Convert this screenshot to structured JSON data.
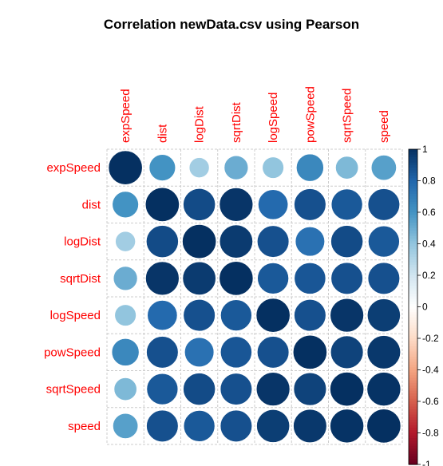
{
  "chart_data": {
    "type": "heatmap",
    "title": "Correlation newData.csv using Pearson",
    "variables": [
      "expSpeed",
      "dist",
      "logDist",
      "sqrtDist",
      "logSpeed",
      "powSpeed",
      "sqrtSpeed",
      "speed"
    ],
    "matrix": [
      [
        1.0,
        0.6,
        0.35,
        0.5,
        0.4,
        0.65,
        0.45,
        0.55
      ],
      [
        0.6,
        1.0,
        0.9,
        0.98,
        0.78,
        0.88,
        0.85,
        0.88
      ],
      [
        0.35,
        0.9,
        1.0,
        0.96,
        0.88,
        0.75,
        0.9,
        0.85
      ],
      [
        0.5,
        0.98,
        0.96,
        1.0,
        0.85,
        0.86,
        0.88,
        0.88
      ],
      [
        0.4,
        0.78,
        0.88,
        0.85,
        1.0,
        0.88,
        0.98,
        0.95
      ],
      [
        0.65,
        0.88,
        0.75,
        0.86,
        0.88,
        1.0,
        0.93,
        0.97
      ],
      [
        0.45,
        0.85,
        0.9,
        0.88,
        0.98,
        0.93,
        1.0,
        0.99
      ],
      [
        0.55,
        0.88,
        0.85,
        0.88,
        0.95,
        0.97,
        0.99,
        1.0
      ]
    ],
    "color_scale": {
      "range": [
        -1,
        1
      ],
      "ticks": [
        "1",
        "0.8",
        "0.6",
        "0.4",
        "0.2",
        "0",
        "-0.2",
        "-0.4",
        "-0.6",
        "-0.8",
        "-1"
      ],
      "colors": [
        "#67001F",
        "#B2182B",
        "#D6604D",
        "#F4A582",
        "#FDDBC7",
        "#FFFFFF",
        "#D1E5F0",
        "#92C5DE",
        "#4393C3",
        "#2166AC",
        "#053061"
      ]
    },
    "label_color": "#FF0000",
    "glyph": "circle"
  }
}
